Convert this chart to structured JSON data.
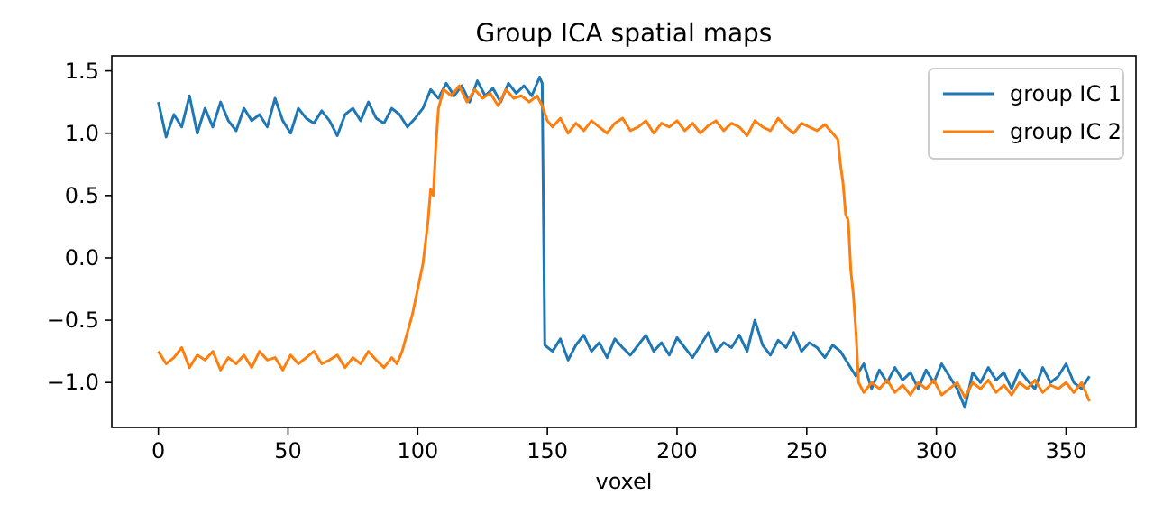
{
  "chart_data": {
    "type": "line",
    "title": "Group ICA spatial maps",
    "xlabel": "voxel",
    "xlim": [
      -17.95,
      376.95
    ],
    "ylim": [
      -1.36,
      1.62
    ],
    "xticks": [
      0,
      50,
      100,
      150,
      200,
      250,
      300,
      350
    ],
    "yticks": [
      {
        "value": -1.0,
        "label": "−1.0"
      },
      {
        "value": -0.5,
        "label": "−0.5"
      },
      {
        "value": 0,
        "label": "0.0"
      },
      {
        "value": 0.5,
        "label": "0.5"
      },
      {
        "value": 1.0,
        "label": "1.0"
      },
      {
        "value": 1.5,
        "label": "1.5"
      }
    ],
    "legend": "top right",
    "grid": false,
    "series": [
      {
        "name": "group IC 1",
        "color": "#1f77b4",
        "x": [
          0,
          3,
          6,
          9,
          12,
          15,
          18,
          21,
          24,
          27,
          30,
          33,
          36,
          39,
          42,
          45,
          48,
          51,
          54,
          57,
          60,
          63,
          66,
          69,
          72,
          75,
          78,
          81,
          84,
          87,
          90,
          93,
          96,
          99,
          102,
          105,
          108,
          111,
          114,
          117,
          120,
          123,
          126,
          129,
          132,
          135,
          138,
          141,
          144,
          147,
          148,
          149,
          152,
          155,
          158,
          161,
          164,
          167,
          170,
          173,
          176,
          179,
          182,
          185,
          188,
          191,
          194,
          197,
          200,
          203,
          206,
          209,
          212,
          215,
          218,
          221,
          224,
          227,
          230,
          233,
          236,
          239,
          242,
          245,
          248,
          251,
          254,
          257,
          260,
          263,
          266,
          269,
          272,
          275,
          278,
          281,
          284,
          287,
          290,
          293,
          296,
          299,
          302,
          305,
          308,
          311,
          314,
          317,
          320,
          323,
          326,
          329,
          332,
          335,
          338,
          341,
          344,
          347,
          350,
          353,
          356,
          359
        ],
        "values": [
          1.25,
          0.97,
          1.15,
          1.05,
          1.3,
          1.0,
          1.2,
          1.05,
          1.25,
          1.1,
          1.02,
          1.2,
          1.1,
          1.15,
          1.05,
          1.28,
          1.1,
          1.0,
          1.2,
          1.12,
          1.08,
          1.18,
          1.1,
          0.98,
          1.15,
          1.2,
          1.1,
          1.25,
          1.12,
          1.08,
          1.2,
          1.15,
          1.05,
          1.12,
          1.2,
          1.35,
          1.28,
          1.4,
          1.3,
          1.38,
          1.25,
          1.42,
          1.3,
          1.36,
          1.25,
          1.4,
          1.32,
          1.38,
          1.3,
          1.45,
          1.4,
          -0.7,
          -0.75,
          -0.65,
          -0.82,
          -0.7,
          -0.62,
          -0.75,
          -0.68,
          -0.8,
          -0.65,
          -0.72,
          -0.78,
          -0.7,
          -0.62,
          -0.75,
          -0.68,
          -0.78,
          -0.64,
          -0.72,
          -0.8,
          -0.7,
          -0.6,
          -0.75,
          -0.68,
          -0.72,
          -0.62,
          -0.75,
          -0.5,
          -0.7,
          -0.78,
          -0.66,
          -0.72,
          -0.6,
          -0.75,
          -0.68,
          -0.72,
          -0.8,
          -0.7,
          -0.75,
          -0.85,
          -0.95,
          -0.85,
          -1.05,
          -0.9,
          -1.0,
          -0.88,
          -0.98,
          -0.92,
          -1.05,
          -0.9,
          -1.0,
          -0.85,
          -0.95,
          -1.05,
          -1.2,
          -0.92,
          -1.0,
          -0.88,
          -0.98,
          -0.92,
          -1.05,
          -0.9,
          -0.98,
          -1.05,
          -0.88,
          -1.0,
          -0.95,
          -0.85,
          -1.0,
          -1.05,
          -0.95
        ]
      },
      {
        "name": "group IC 2",
        "color": "#ff7f0e",
        "x": [
          0,
          3,
          6,
          9,
          12,
          15,
          18,
          21,
          24,
          27,
          30,
          33,
          36,
          39,
          42,
          45,
          48,
          51,
          54,
          57,
          60,
          63,
          66,
          69,
          72,
          75,
          78,
          81,
          84,
          87,
          90,
          92,
          94,
          96,
          98,
          100,
          102,
          103,
          104,
          105,
          106,
          107,
          108,
          110,
          113,
          116,
          119,
          122,
          125,
          128,
          131,
          134,
          137,
          140,
          143,
          146,
          148,
          150,
          152,
          155,
          158,
          161,
          164,
          167,
          170,
          173,
          176,
          179,
          182,
          185,
          188,
          191,
          194,
          197,
          200,
          203,
          206,
          209,
          212,
          215,
          218,
          221,
          224,
          227,
          230,
          233,
          236,
          239,
          242,
          245,
          248,
          251,
          254,
          257,
          260,
          262,
          263,
          264,
          265,
          266,
          267,
          268,
          269,
          270,
          272,
          275,
          278,
          281,
          284,
          287,
          290,
          293,
          296,
          299,
          302,
          305,
          308,
          311,
          314,
          317,
          320,
          323,
          326,
          329,
          332,
          335,
          338,
          341,
          344,
          347,
          350,
          353,
          356,
          359
        ],
        "values": [
          -0.75,
          -0.85,
          -0.8,
          -0.72,
          -0.88,
          -0.78,
          -0.82,
          -0.75,
          -0.9,
          -0.8,
          -0.85,
          -0.78,
          -0.88,
          -0.75,
          -0.82,
          -0.8,
          -0.9,
          -0.78,
          -0.85,
          -0.8,
          -0.75,
          -0.85,
          -0.82,
          -0.78,
          -0.88,
          -0.8,
          -0.85,
          -0.75,
          -0.82,
          -0.88,
          -0.8,
          -0.85,
          -0.75,
          -0.6,
          -0.45,
          -0.25,
          -0.05,
          0.12,
          0.3,
          0.55,
          0.5,
          0.9,
          1.2,
          1.35,
          1.3,
          1.38,
          1.25,
          1.35,
          1.28,
          1.32,
          1.22,
          1.35,
          1.28,
          1.3,
          1.25,
          1.3,
          1.22,
          1.1,
          1.05,
          1.12,
          1.0,
          1.08,
          1.02,
          1.1,
          1.05,
          1.0,
          1.08,
          1.12,
          1.02,
          1.05,
          1.1,
          1.0,
          1.08,
          1.05,
          1.1,
          1.02,
          1.08,
          1.0,
          1.06,
          1.1,
          1.02,
          1.08,
          1.05,
          0.98,
          1.1,
          1.05,
          1.02,
          1.12,
          1.05,
          1.0,
          1.08,
          1.05,
          1.02,
          1.07,
          1.0,
          0.95,
          0.75,
          0.6,
          0.35,
          0.3,
          -0.1,
          -0.3,
          -0.6,
          -1.0,
          -1.08,
          -1.0,
          -1.05,
          -0.98,
          -1.08,
          -1.02,
          -1.1,
          -1.0,
          -1.05,
          -0.98,
          -1.1,
          -1.05,
          -1.0,
          -1.12,
          -1.0,
          -1.05,
          -0.98,
          -1.08,
          -1.02,
          -1.1,
          -1.0,
          -1.05,
          -0.98,
          -1.08,
          -1.02,
          -1.05,
          -1.0,
          -1.08,
          -1.0,
          -1.15
        ]
      }
    ]
  }
}
